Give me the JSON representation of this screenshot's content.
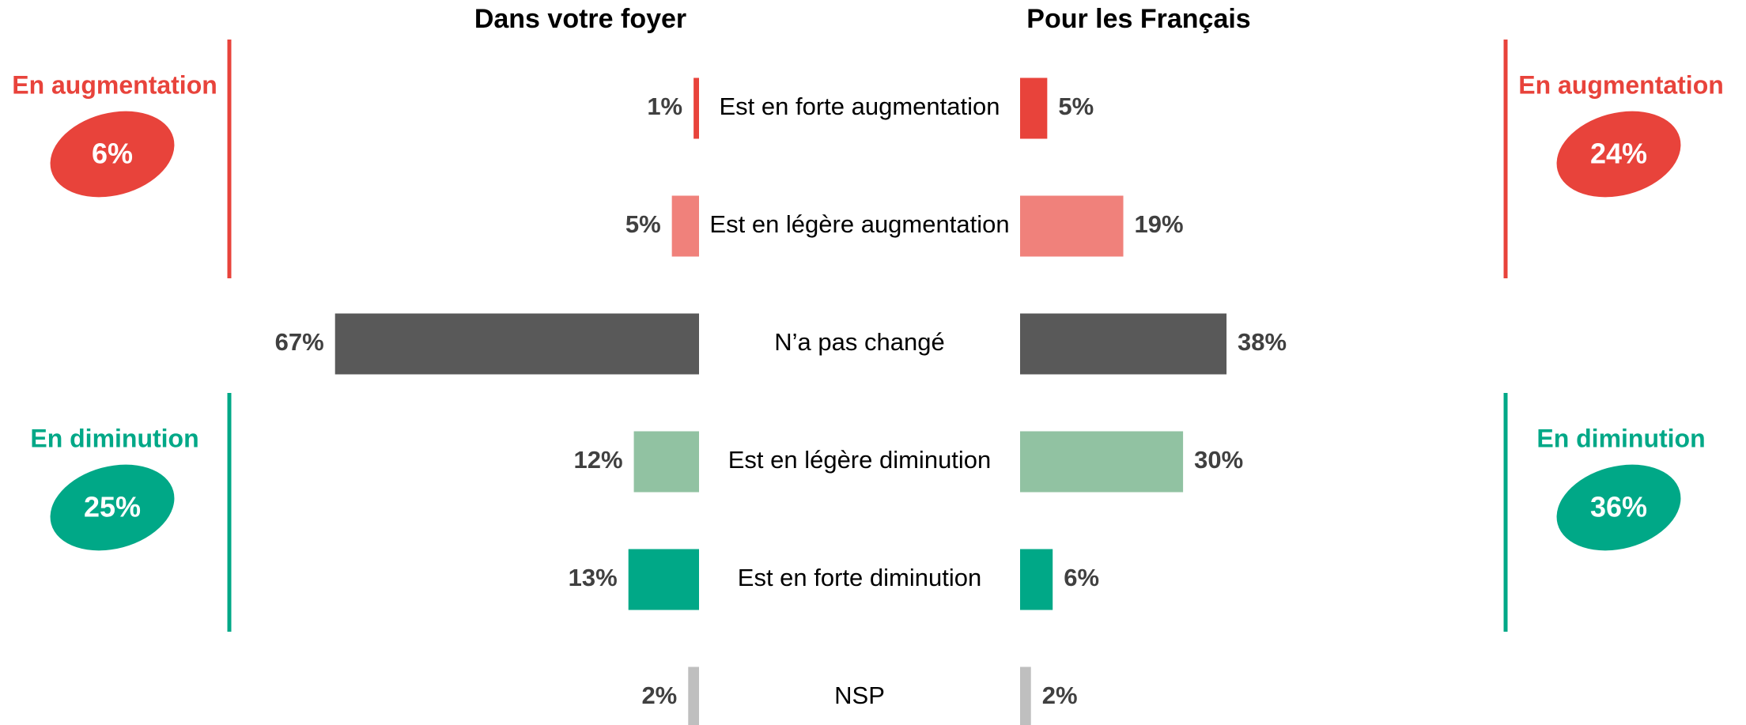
{
  "chart_data": {
    "type": "butterfly",
    "categories": [
      "Est en forte augmentation",
      "Est en légère augmentation",
      "N’a pas changé",
      "Est en légère diminution",
      "Est en forte diminution",
      "NSP"
    ],
    "colors": [
      "#e8433b",
      "#f0817b",
      "#595959",
      "#91c2a2",
      "#00a887",
      "#bfbfbf"
    ],
    "xlim": [
      0,
      100
    ],
    "series": [
      {
        "name": "Dans votre foyer",
        "values": [
          1,
          5,
          67,
          12,
          13,
          2
        ],
        "value_labels": [
          "1%",
          "5%",
          "67%",
          "12%",
          "13%",
          "2%"
        ]
      },
      {
        "name": "Pour les Français",
        "values": [
          5,
          19,
          38,
          30,
          6,
          2
        ],
        "value_labels": [
          "5%",
          "19%",
          "38%",
          "30%",
          "6%",
          "2%"
        ]
      }
    ],
    "groups": [
      {
        "name": "En augmentation",
        "color": "#e8433b",
        "values": [
          6,
          24
        ],
        "value_labels": [
          "6%",
          "24%"
        ]
      },
      {
        "name": "En diminution",
        "color": "#00a887",
        "values": [
          25,
          36
        ],
        "value_labels": [
          "25%",
          "36%"
        ]
      }
    ]
  }
}
